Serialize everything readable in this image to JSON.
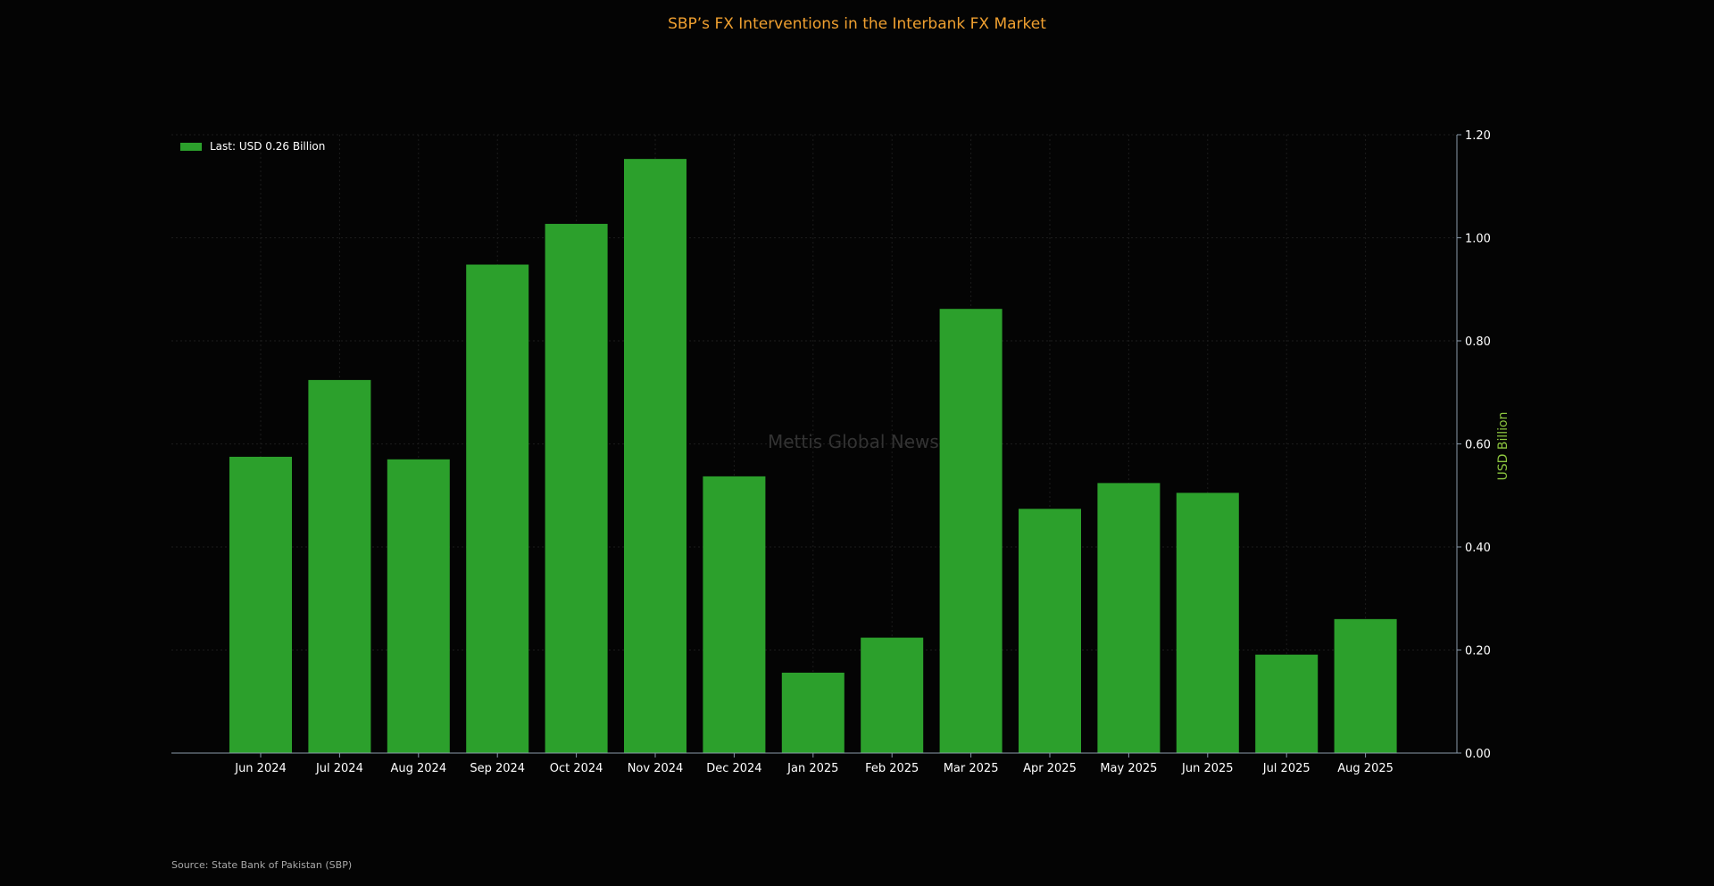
{
  "title": "SBP’s FX Interventions in the Interbank FX Market",
  "source": "Source: State Bank of Pakistan (SBP)",
  "watermark": "Mettis Global News",
  "colors": {
    "background": "#040404",
    "bar": "#2ca02c",
    "title": "#f0a030",
    "ylabel": "#8dc63f",
    "axis": "#8a9aaa",
    "grid": "#1c1c1c"
  },
  "chart_data": {
    "type": "bar",
    "categories": [
      "Jun 2024",
      "Jul 2024",
      "Aug 2024",
      "Sep 2024",
      "Oct 2024",
      "Nov 2024",
      "Dec 2024",
      "Jan 2025",
      "Feb 2025",
      "Mar 2025",
      "Apr 2025",
      "May 2025",
      "Jun 2025",
      "Jul 2025",
      "Aug 2025"
    ],
    "series": [
      {
        "name": "Last: USD 0.26 Billion",
        "values": [
          0.575,
          0.724,
          0.57,
          0.948,
          1.027,
          1.153,
          0.537,
          0.156,
          0.224,
          0.862,
          0.474,
          0.524,
          0.505,
          0.191,
          0.26
        ]
      }
    ],
    "ylabel": "USD Billion",
    "ylim": [
      0,
      1.2
    ],
    "yticks": [
      "0.00",
      "0.20",
      "0.40",
      "0.60",
      "0.80",
      "1.00",
      "1.20"
    ],
    "y_axis_side": "right",
    "grid": true,
    "legend_position": "top-left"
  }
}
